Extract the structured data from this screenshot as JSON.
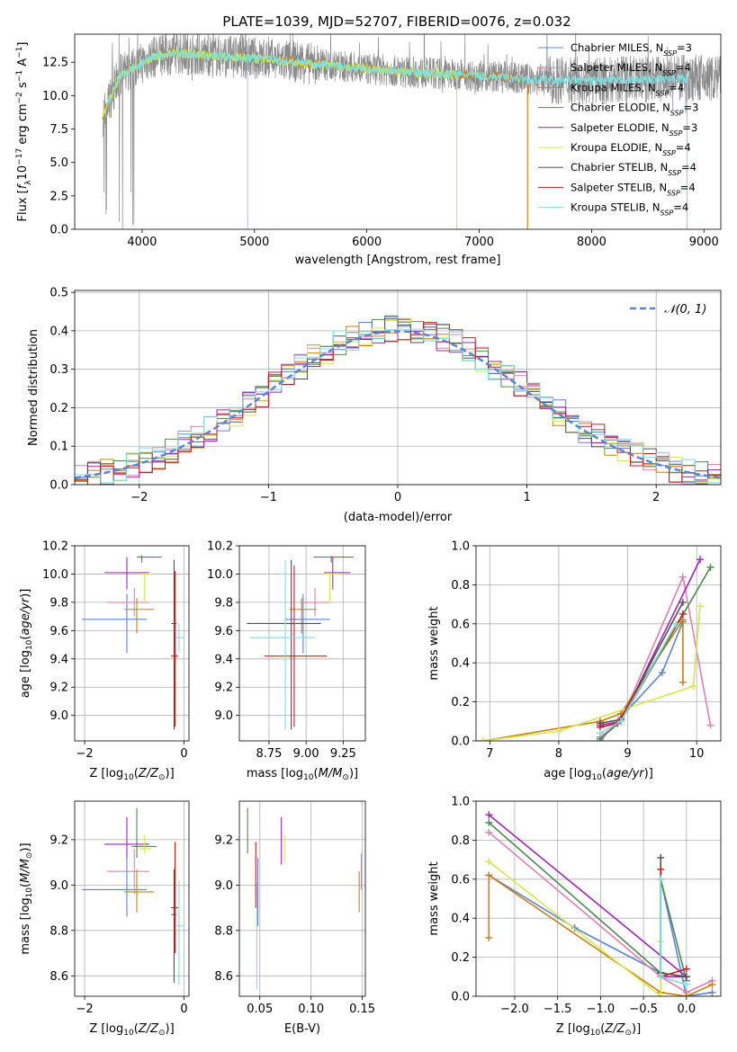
{
  "figure_title": "PLATE=1039, MJD=52707, FIBERID=0076, z=0.032",
  "series_legend": [
    {
      "label": "Chabrier MILES, N",
      "sub": "SSP",
      "tail": "=3",
      "color": "#5b84d8"
    },
    {
      "label": "Salpeter MILES, N",
      "sub": "SSP",
      "tail": "=4",
      "color": "#e07fb0"
    },
    {
      "label": "Kroupa MILES, N",
      "sub": "SSP",
      "tail": "=4",
      "color": "#c8800f"
    },
    {
      "label": "Chabrier ELODIE, N",
      "sub": "SSP",
      "tail": "=3",
      "color": "#4f8a4f"
    },
    {
      "label": "Salpeter ELODIE, N",
      "sub": "SSP",
      "tail": "=3",
      "color": "#9b27af"
    },
    {
      "label": "Kroupa ELODIE, N",
      "sub": "SSP",
      "tail": "=4",
      "color": "#d4e84e"
    },
    {
      "label": "Chabrier STELIB, N",
      "sub": "SSP",
      "tail": "=4",
      "color": "#505050"
    },
    {
      "label": "Salpeter STELIB, N",
      "sub": "SSP",
      "tail": "=4",
      "color": "#c41f1f"
    },
    {
      "label": "Kroupa STELIB, N",
      "sub": "SSP",
      "tail": "=4",
      "color": "#7fdede"
    }
  ],
  "chart_data": [
    {
      "id": "spectrum",
      "type": "line",
      "xlabel": "wavelength [Angstrom, rest frame]",
      "ylabel": "Flux [fλ10⁻¹⁷ erg cm⁻² s⁻¹ A⁻¹]",
      "xlim": [
        3400,
        9150
      ],
      "ylim": [
        0,
        14.6
      ],
      "xticks": [
        "4000",
        "5000",
        "6000",
        "7000",
        "8000",
        "9000"
      ],
      "xtick_values": [
        4000,
        5000,
        6000,
        7000,
        8000,
        9000
      ],
      "yticks": [
        "0.0",
        "2.5",
        "5.0",
        "7.5",
        "10.0",
        "12.5"
      ],
      "ytick_values": [
        0,
        2.5,
        5,
        7.5,
        10,
        12.5
      ],
      "data_color": "#8a8a8a",
      "data_range": [
        3650,
        9150
      ],
      "models": [
        {
          "color": "#c8800f",
          "range": [
            3650,
            7430
          ]
        },
        {
          "color": "#d4e84e",
          "range": [
            3650,
            6800
          ]
        },
        {
          "color": "#7fdede",
          "range": [
            3700,
            8850
          ]
        }
      ],
      "continuum_x": [
        3650,
        3800,
        3950,
        4100,
        4300,
        4600,
        5000,
        5500,
        6000,
        6500,
        7000,
        7500,
        8000,
        8500,
        8850
      ],
      "continuum_y": [
        8.5,
        11.5,
        12.2,
        12.9,
        13.2,
        13.0,
        12.8,
        12.4,
        12.0,
        11.7,
        11.5,
        11.2,
        11.1,
        11.2,
        11.3
      ]
    },
    {
      "id": "residuals",
      "type": "step",
      "xlabel": "(data-model)/error",
      "ylabel": "Normed distribution",
      "xlim": [
        -2.5,
        2.5
      ],
      "ylim": [
        0,
        0.505
      ],
      "xticks": [
        "−2",
        "−1",
        "0",
        "1",
        "2"
      ],
      "xtick_values": [
        -2,
        -1,
        0,
        1,
        2
      ],
      "yticks": [
        "0.0",
        "0.1",
        "0.2",
        "0.3",
        "0.4",
        "0.5"
      ],
      "ytick_values": [
        0,
        0.1,
        0.2,
        0.3,
        0.4,
        0.5
      ],
      "bin_width": 0.1,
      "normal_label": "𝒩(0, 1)",
      "normal_color": "#5b84d8",
      "hist_colors": [
        "#5b84d8",
        "#e07fb0",
        "#c8800f",
        "#4f8a4f",
        "#9b27af",
        "#d4e84e",
        "#505050",
        "#c41f1f",
        "#7fdede"
      ]
    },
    {
      "id": "age_vs_Z",
      "type": "errorbar",
      "xlabel": "Z [log10(Z/Z⊙)]",
      "ylabel": "age  [log10(age/yr)]",
      "xlim": [
        -2.2,
        0.1
      ],
      "ylim": [
        8.82,
        10.2
      ],
      "xticks": [
        "−2",
        "0"
      ],
      "xtick_values": [
        -2,
        0
      ],
      "yticks": [
        "9.0",
        "9.2",
        "9.4",
        "9.6",
        "9.8",
        "10.0",
        "10.2"
      ],
      "ytick_values": [
        9.0,
        9.2,
        9.4,
        9.6,
        9.8,
        10.0,
        10.2
      ],
      "points": [
        {
          "x": -1.15,
          "y": 9.68,
          "xerr": [
            0.9,
            0.4
          ],
          "yerr": [
            0.24,
            0.18
          ],
          "color": "#5b84d8"
        },
        {
          "x": -1.0,
          "y": 9.8,
          "xerr": [
            0.55,
            0.3
          ],
          "yerr": [
            0.1,
            0.1
          ],
          "color": "#e07fb0"
        },
        {
          "x": -0.95,
          "y": 9.75,
          "xerr": [
            0.25,
            0.35
          ],
          "yerr": [
            0.17,
            0.08
          ],
          "color": "#c8800f"
        },
        {
          "x": -0.85,
          "y": 10.12,
          "xerr": [
            0.1,
            0.4
          ],
          "yerr": [
            0.04,
            0.01
          ],
          "color": "#4f8a4f"
        },
        {
          "x": -1.15,
          "y": 10.01,
          "xerr": [
            0.45,
            0.45
          ],
          "yerr": [
            0.12,
            0.11
          ],
          "color": "#9b27af"
        },
        {
          "x": -0.8,
          "y": 10.0,
          "xerr": [
            0.1,
            0.15
          ],
          "yerr": [
            0.2,
            0.0
          ],
          "color": "#d4e84e"
        },
        {
          "x": -0.2,
          "y": 9.65,
          "xerr": [
            0.05,
            0.05
          ],
          "yerr": [
            0.75,
            0.45
          ],
          "color": "#505050"
        },
        {
          "x": -0.18,
          "y": 9.42,
          "xerr": [
            0.08,
            0.06
          ],
          "yerr": [
            0.5,
            0.6
          ],
          "color": "#c41f1f"
        },
        {
          "x": -0.1,
          "y": 9.55,
          "xerr": [
            0.05,
            0.1
          ],
          "yerr": [
            0.1,
            0.1
          ],
          "color": "#7fdede"
        }
      ]
    },
    {
      "id": "age_vs_mass",
      "type": "errorbar",
      "xlabel": "mass [log10(M/M⊙)]",
      "xlim": [
        8.55,
        9.4
      ],
      "ylim": [
        8.82,
        10.2
      ],
      "xticks": [
        "8.75",
        "9.00",
        "9.25"
      ],
      "xtick_values": [
        8.75,
        9.0,
        9.25
      ],
      "yticks": [
        "9.0",
        "9.2",
        "9.4",
        "9.6",
        "9.8",
        "10.0",
        "10.2"
      ],
      "ytick_values": [
        9.0,
        9.2,
        9.4,
        9.6,
        9.8,
        10.0,
        10.2
      ],
      "points": [
        {
          "x": 8.98,
          "y": 9.68,
          "xerr": [
            0.12,
            0.18
          ],
          "yerr": [
            0.24,
            0.18
          ],
          "color": "#5b84d8"
        },
        {
          "x": 9.06,
          "y": 9.8,
          "xerr": [
            0.1,
            0.1
          ],
          "yerr": [
            0.1,
            0.1
          ],
          "color": "#e07fb0"
        },
        {
          "x": 8.97,
          "y": 9.75,
          "xerr": [
            0.08,
            0.1
          ],
          "yerr": [
            0.17,
            0.08
          ],
          "color": "#c8800f"
        },
        {
          "x": 9.17,
          "y": 10.12,
          "xerr": [
            0.12,
            0.15
          ],
          "yerr": [
            0.04,
            0.01
          ],
          "color": "#4f8a4f"
        },
        {
          "x": 9.18,
          "y": 10.01,
          "xerr": [
            0.06,
            0.12
          ],
          "yerr": [
            0.12,
            0.11
          ],
          "color": "#9b27af"
        },
        {
          "x": 9.16,
          "y": 10.0,
          "xerr": [
            0.04,
            0.08
          ],
          "yerr": [
            0.2,
            0.0
          ],
          "color": "#d4e84e"
        },
        {
          "x": 8.9,
          "y": 9.65,
          "xerr": [
            0.3,
            0.2
          ],
          "yerr": [
            0.75,
            0.45
          ],
          "color": "#505050"
        },
        {
          "x": 8.92,
          "y": 9.42,
          "xerr": [
            0.2,
            0.22
          ],
          "yerr": [
            0.5,
            0.64
          ],
          "color": "#c41f1f"
        },
        {
          "x": 8.86,
          "y": 9.55,
          "xerr": [
            0.24,
            0.2
          ],
          "yerr": [
            0.65,
            0.55
          ],
          "color": "#7fdede"
        }
      ]
    },
    {
      "id": "massweight_vs_age",
      "type": "line",
      "xlabel": "age  [log10(age/yr)]",
      "ylabel": "mass weight",
      "xlim": [
        6.8,
        10.35
      ],
      "ylim": [
        0,
        1
      ],
      "xticks": [
        "7",
        "8",
        "9",
        "10"
      ],
      "xtick_values": [
        7,
        8,
        9,
        10
      ],
      "yticks": [
        "0.0",
        "0.2",
        "0.4",
        "0.6",
        "0.8",
        "1.0"
      ],
      "ytick_values": [
        0,
        0.2,
        0.4,
        0.6,
        0.8,
        1.0
      ],
      "series": [
        {
          "color": "#5b84d8",
          "x": [
            8.6,
            8.9,
            9.5,
            9.8
          ],
          "y": [
            0.0,
            0.12,
            0.35,
            0.61
          ]
        },
        {
          "color": "#e07fb0",
          "x": [
            8.6,
            8.9,
            9.8,
            10.2
          ],
          "y": [
            0.02,
            0.1,
            0.84,
            0.08
          ]
        },
        {
          "color": "#c8800f",
          "x": [
            6.9,
            8.6,
            8.9,
            9.8,
            9.8
          ],
          "y": [
            0.0,
            0.1,
            0.14,
            0.62,
            0.3
          ]
        },
        {
          "color": "#4f8a4f",
          "x": [
            8.6,
            8.9,
            10.2
          ],
          "y": [
            0.01,
            0.1,
            0.89
          ]
        },
        {
          "color": "#9b27af",
          "x": [
            8.6,
            8.9,
            10.05
          ],
          "y": [
            0.08,
            0.1,
            0.93
          ]
        },
        {
          "color": "#d4e84e",
          "x": [
            6.9,
            8.0,
            9.95,
            10.05
          ],
          "y": [
            0.0,
            0.05,
            0.28,
            0.69
          ]
        },
        {
          "color": "#505050",
          "x": [
            8.6,
            8.9,
            9.8
          ],
          "y": [
            0.09,
            0.11,
            0.71
          ]
        },
        {
          "color": "#c41f1f",
          "x": [
            8.6,
            8.85,
            9.8
          ],
          "y": [
            0.07,
            0.09,
            0.65
          ]
        },
        {
          "color": "#7fdede",
          "x": [
            8.6,
            8.9,
            9.7
          ],
          "y": [
            0.04,
            0.1,
            0.6
          ]
        }
      ]
    },
    {
      "id": "mass_vs_Z",
      "type": "errorbar",
      "xlabel": "Z [log10(Z/Z⊙)]",
      "ylabel": "mass [log10(M/M⊙)]",
      "xlim": [
        -2.2,
        0.1
      ],
      "ylim": [
        8.51,
        9.37
      ],
      "xticks": [
        "−2",
        "0"
      ],
      "xtick_values": [
        -2,
        0
      ],
      "yticks": [
        "8.6",
        "8.8",
        "9.0",
        "9.2"
      ],
      "ytick_values": [
        8.6,
        8.8,
        9.0,
        9.2
      ],
      "points": [
        {
          "x": -1.15,
          "y": 8.98,
          "xerr": [
            0.9,
            0.4
          ],
          "yerr": [
            0.12,
            0.16
          ],
          "color": "#5b84d8"
        },
        {
          "x": -1.0,
          "y": 9.06,
          "xerr": [
            0.55,
            0.3
          ],
          "yerr": [
            0.1,
            0.1
          ],
          "color": "#e07fb0"
        },
        {
          "x": -0.95,
          "y": 8.97,
          "xerr": [
            0.25,
            0.35
          ],
          "yerr": [
            0.09,
            0.1
          ],
          "color": "#c8800f"
        },
        {
          "x": -0.95,
          "y": 9.17,
          "xerr": [
            0.1,
            0.4
          ],
          "yerr": [
            0.05,
            0.17
          ],
          "color": "#4f8a4f"
        },
        {
          "x": -1.15,
          "y": 9.18,
          "xerr": [
            0.45,
            0.45
          ],
          "yerr": [
            0.06,
            0.12
          ],
          "color": "#9b27af"
        },
        {
          "x": -0.8,
          "y": 9.16,
          "xerr": [
            0.1,
            0.15
          ],
          "yerr": [
            0.02,
            0.06
          ],
          "color": "#d4e84e"
        },
        {
          "x": -0.2,
          "y": 8.87,
          "xerr": [
            0.05,
            0.05
          ],
          "yerr": [
            0.3,
            0.2
          ],
          "color": "#505050"
        },
        {
          "x": -0.18,
          "y": 8.9,
          "xerr": [
            0.08,
            0.06
          ],
          "yerr": [
            0.2,
            0.29
          ],
          "color": "#c41f1f"
        },
        {
          "x": -0.1,
          "y": 8.82,
          "xerr": [
            0.05,
            0.1
          ],
          "yerr": [
            0.26,
            0.2
          ],
          "color": "#7fdede"
        }
      ]
    },
    {
      "id": "mass_vs_EBV",
      "type": "errorbar",
      "xlabel": "E(B-V)",
      "xlim": [
        0.03,
        0.153
      ],
      "ylim": [
        8.51,
        9.37
      ],
      "xticks": [
        "0.05",
        "0.10",
        "0.15"
      ],
      "xtick_values": [
        0.05,
        0.1,
        0.15
      ],
      "yticks": [
        "8.6",
        "8.8",
        "9.0",
        "9.2"
      ],
      "ytick_values": [
        8.6,
        8.8,
        9.0,
        9.2
      ],
      "points": [
        {
          "x": 0.038,
          "y": 9.2,
          "yerr": [
            0.06,
            0.14
          ],
          "color": "#4f8a4f"
        },
        {
          "x": 0.046,
          "y": 9.09,
          "yerr": [
            0.19,
            0.1
          ],
          "color": "#c41f1f"
        },
        {
          "x": 0.047,
          "y": 8.83,
          "yerr": [
            0.29,
            0.18
          ],
          "color": "#7fdede"
        },
        {
          "x": 0.048,
          "y": 8.92,
          "yerr": [
            0.1,
            0.2
          ],
          "color": "#5b84d8"
        },
        {
          "x": 0.071,
          "y": 9.2,
          "yerr": [
            0.11,
            0.1
          ],
          "color": "#9b27af"
        },
        {
          "x": 0.074,
          "y": 9.16,
          "yerr": [
            0.06,
            0.06
          ],
          "color": "#d4e84e"
        },
        {
          "x": 0.147,
          "y": 8.97,
          "yerr": [
            0.09,
            0.09
          ],
          "color": "#c8800f"
        },
        {
          "x": 0.149,
          "y": 9.06,
          "yerr": [
            0.08,
            0.08
          ],
          "color": "#e07fb0"
        }
      ]
    },
    {
      "id": "massweight_vs_Z",
      "type": "line",
      "xlabel": "Z [log10(Z/Z⊙)]",
      "ylabel": "mass weight",
      "xlim": [
        -2.45,
        0.4
      ],
      "ylim": [
        0,
        1
      ],
      "xticks": [
        "−2.0",
        "−1.5",
        "−1.0",
        "−0.5",
        "0.0"
      ],
      "xtick_values": [
        -2,
        -1.5,
        -1,
        -0.5,
        0
      ],
      "yticks": [
        "0.0",
        "0.2",
        "0.4",
        "0.6",
        "0.8",
        "1.0"
      ],
      "ytick_values": [
        0,
        0.2,
        0.4,
        0.6,
        0.8,
        1.0
      ],
      "series": [
        {
          "color": "#5b84d8",
          "x": [
            -2.3,
            -1.3,
            -0.3,
            -0.3,
            0.0,
            0.3
          ],
          "y": [
            0.62,
            0.35,
            0.12,
            0.6,
            0.0,
            0.02
          ]
        },
        {
          "color": "#e07fb0",
          "x": [
            -2.3,
            -0.3,
            0.0,
            0.3
          ],
          "y": [
            0.84,
            0.1,
            0.02,
            0.08
          ]
        },
        {
          "color": "#c8800f",
          "x": [
            -2.3,
            -2.3,
            -0.3,
            0.0,
            0.3
          ],
          "y": [
            0.3,
            0.62,
            0.02,
            0.0,
            0.06
          ]
        },
        {
          "color": "#4f8a4f",
          "x": [
            -2.3,
            -0.3,
            -0.3,
            0.0
          ],
          "y": [
            0.89,
            0.12,
            0.6,
            0.08
          ]
        },
        {
          "color": "#9b27af",
          "x": [
            -2.3,
            0.0,
            -0.3
          ],
          "y": [
            0.93,
            0.1,
            0.1
          ]
        },
        {
          "color": "#d4e84e",
          "x": [
            -2.3,
            -0.3,
            -0.3
          ],
          "y": [
            0.69,
            0.0,
            0.28
          ]
        },
        {
          "color": "#505050",
          "x": [
            -0.3,
            -0.3,
            0.0
          ],
          "y": [
            0.71,
            0.12,
            0.1
          ]
        },
        {
          "color": "#c41f1f",
          "x": [
            -0.3,
            -0.3,
            0.0
          ],
          "y": [
            0.65,
            0.1,
            0.14
          ]
        },
        {
          "color": "#7fdede",
          "x": [
            -0.3,
            -0.3,
            0.0
          ],
          "y": [
            0.6,
            0.1,
            0.06
          ]
        }
      ]
    }
  ]
}
